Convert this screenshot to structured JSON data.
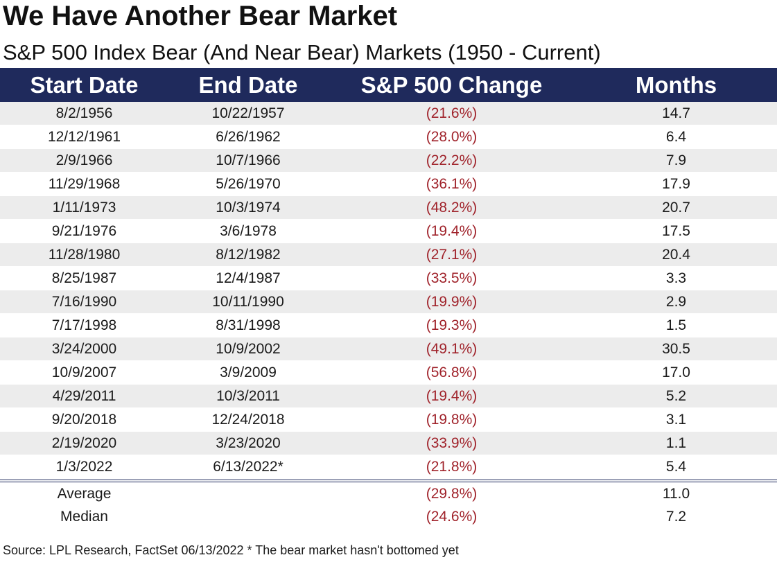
{
  "title": "We Have Another Bear Market",
  "subtitle": "S&P 500 Index Bear (And Near Bear) Markets (1950 - Current)",
  "colors": {
    "header_bg": "#1f2a5c",
    "negative_text": "#a0232b",
    "row_shade": "#ececec"
  },
  "table": {
    "headers": [
      "Start Date",
      "End Date",
      "S&P 500 Change",
      "Months"
    ],
    "rows": [
      [
        "8/2/1956",
        "10/22/1957",
        "(21.6%)",
        "14.7"
      ],
      [
        "12/12/1961",
        "6/26/1962",
        "(28.0%)",
        "6.4"
      ],
      [
        "2/9/1966",
        "10/7/1966",
        "(22.2%)",
        "7.9"
      ],
      [
        "11/29/1968",
        "5/26/1970",
        "(36.1%)",
        "17.9"
      ],
      [
        "1/11/1973",
        "10/3/1974",
        "(48.2%)",
        "20.7"
      ],
      [
        "9/21/1976",
        "3/6/1978",
        "(19.4%)",
        "17.5"
      ],
      [
        "11/28/1980",
        "8/12/1982",
        "(27.1%)",
        "20.4"
      ],
      [
        "8/25/1987",
        "12/4/1987",
        "(33.5%)",
        "3.3"
      ],
      [
        "7/16/1990",
        "10/11/1990",
        "(19.9%)",
        "2.9"
      ],
      [
        "7/17/1998",
        "8/31/1998",
        "(19.3%)",
        "1.5"
      ],
      [
        "3/24/2000",
        "10/9/2002",
        "(49.1%)",
        "30.5"
      ],
      [
        "10/9/2007",
        "3/9/2009",
        "(56.8%)",
        "17.0"
      ],
      [
        "4/29/2011",
        "10/3/2011",
        "(19.4%)",
        "5.2"
      ],
      [
        "9/20/2018",
        "12/24/2018",
        "(19.8%)",
        "3.1"
      ],
      [
        "2/19/2020",
        "3/23/2020",
        "(33.9%)",
        "1.1"
      ],
      [
        "1/3/2022",
        "6/13/2022*",
        "(21.8%)",
        "5.4"
      ]
    ],
    "summary": [
      [
        "Average",
        "",
        "(29.8%)",
        "11.0"
      ],
      [
        "Median",
        "",
        "(24.6%)",
        "7.2"
      ]
    ]
  },
  "source": "Source: LPL Research, FactSet 06/13/2022  * The bear market hasn't bottomed yet"
}
